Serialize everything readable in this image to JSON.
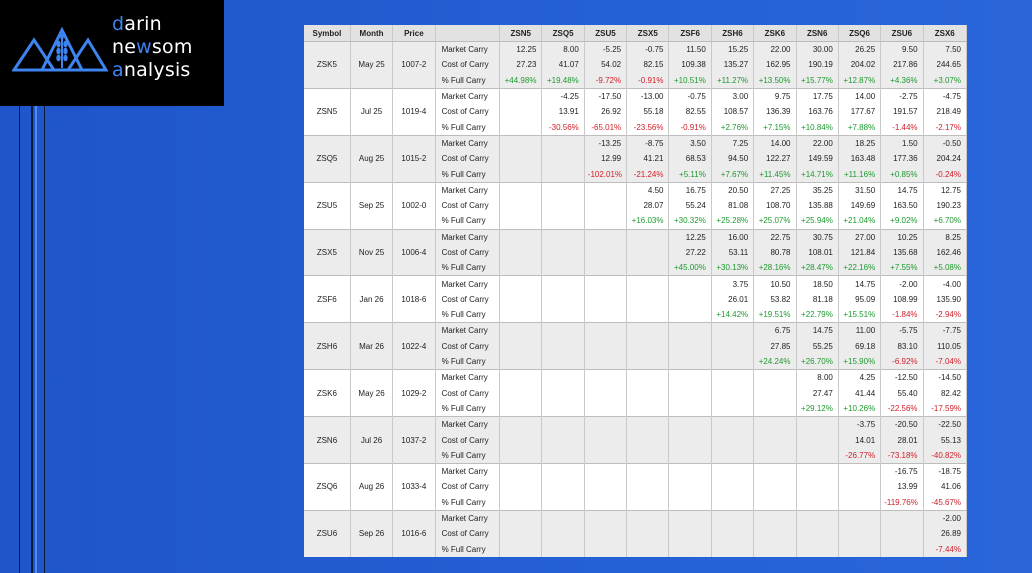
{
  "brand": {
    "line1_hl": "d",
    "line1": "arin",
    "line2_a": "ne",
    "line2_hl": "w",
    "line2_b": "som",
    "line3_hl": "a",
    "line3": "nalysis"
  },
  "colors": {
    "positive": "#1e9a2e",
    "negative": "#d0202a",
    "accent": "#3d84f0"
  },
  "chart_data": {
    "type": "table",
    "headers": [
      "Symbol",
      "Month",
      "Price",
      "",
      "ZSN5",
      "ZSQ5",
      "ZSU5",
      "ZSX5",
      "ZSF6",
      "ZSH6",
      "ZSK6",
      "ZSN6",
      "ZSQ6",
      "ZSU6",
      "ZSX6"
    ],
    "rows": [
      [
        "",
        "",
        "",
        "Market Carry",
        "12.25",
        "8.00",
        "-5.25",
        "-0.75",
        "11.50",
        "15.25",
        "22.00",
        "30.00",
        "26.25",
        "9.50",
        "7.50"
      ],
      [
        "ZSK5",
        "May 25",
        "1007-2",
        "Cost of Carry",
        "27.23",
        "41.07",
        "54.02",
        "82.15",
        "109.38",
        "135.27",
        "162.95",
        "190.19",
        "204.02",
        "217.86",
        "244.65"
      ],
      [
        "",
        "",
        "",
        "% Full Carry",
        "+44.98%",
        "+19.48%",
        "-9.72%",
        "-0.91%",
        "+10.51%",
        "+11.27%",
        "+13.50%",
        "+15.77%",
        "+12.87%",
        "+4.36%",
        "+3.07%"
      ],
      [
        "",
        "",
        "",
        "Market Carry",
        "",
        "-4.25",
        "-17.50",
        "-13.00",
        "-0.75",
        "3.00",
        "9.75",
        "17.75",
        "14.00",
        "-2.75",
        "-4.75"
      ],
      [
        "ZSN5",
        "Jul 25",
        "1019-4",
        "Cost of Carry",
        "",
        "13.91",
        "26.92",
        "55.18",
        "82.55",
        "108.57",
        "136.39",
        "163.76",
        "177.67",
        "191.57",
        "218.49"
      ],
      [
        "",
        "",
        "",
        "% Full Carry",
        "",
        "-30.56%",
        "-65.01%",
        "-23.56%",
        "-0.91%",
        "+2.76%",
        "+7.15%",
        "+10.84%",
        "+7.88%",
        "-1.44%",
        "-2.17%"
      ],
      [
        "",
        "",
        "",
        "Market Carry",
        "",
        "",
        "-13.25",
        "-8.75",
        "3.50",
        "7.25",
        "14.00",
        "22.00",
        "18.25",
        "1.50",
        "-0.50"
      ],
      [
        "ZSQ5",
        "Aug 25",
        "1015-2",
        "Cost of Carry",
        "",
        "",
        "12.99",
        "41.21",
        "68.53",
        "94.50",
        "122.27",
        "149.59",
        "163.48",
        "177.36",
        "204.24"
      ],
      [
        "",
        "",
        "",
        "% Full Carry",
        "",
        "",
        "-102.01%",
        "-21.24%",
        "+5.11%",
        "+7.67%",
        "+11.45%",
        "+14.71%",
        "+11.16%",
        "+0.85%",
        "-0.24%"
      ],
      [
        "",
        "",
        "",
        "Market Carry",
        "",
        "",
        "",
        "4.50",
        "16.75",
        "20.50",
        "27.25",
        "35.25",
        "31.50",
        "14.75",
        "12.75"
      ],
      [
        "ZSU5",
        "Sep 25",
        "1002-0",
        "Cost of Carry",
        "",
        "",
        "",
        "28.07",
        "55.24",
        "81.08",
        "108.70",
        "135.88",
        "149.69",
        "163.50",
        "190.23"
      ],
      [
        "",
        "",
        "",
        "% Full Carry",
        "",
        "",
        "",
        "+16.03%",
        "+30.32%",
        "+25.28%",
        "+25.07%",
        "+25.94%",
        "+21.04%",
        "+9.02%",
        "+6.70%"
      ],
      [
        "",
        "",
        "",
        "Market Carry",
        "",
        "",
        "",
        "",
        "12.25",
        "16.00",
        "22.75",
        "30.75",
        "27.00",
        "10.25",
        "8.25"
      ],
      [
        "ZSX5",
        "Nov 25",
        "1006-4",
        "Cost of Carry",
        "",
        "",
        "",
        "",
        "27.22",
        "53.11",
        "80.78",
        "108.01",
        "121.84",
        "135.68",
        "162.46"
      ],
      [
        "",
        "",
        "",
        "% Full Carry",
        "",
        "",
        "",
        "",
        "+45.00%",
        "+30.13%",
        "+28.16%",
        "+28.47%",
        "+22.16%",
        "+7.55%",
        "+5.08%"
      ],
      [
        "",
        "",
        "",
        "Market Carry",
        "",
        "",
        "",
        "",
        "",
        "3.75",
        "10.50",
        "18.50",
        "14.75",
        "-2.00",
        "-4.00"
      ],
      [
        "ZSF6",
        "Jan 26",
        "1018-6",
        "Cost of Carry",
        "",
        "",
        "",
        "",
        "",
        "26.01",
        "53.82",
        "81.18",
        "95.09",
        "108.99",
        "135.90"
      ],
      [
        "",
        "",
        "",
        "% Full Carry",
        "",
        "",
        "",
        "",
        "",
        "+14.42%",
        "+19.51%",
        "+22.79%",
        "+15.51%",
        "-1.84%",
        "-2.94%"
      ],
      [
        "",
        "",
        "",
        "Market Carry",
        "",
        "",
        "",
        "",
        "",
        "",
        "6.75",
        "14.75",
        "11.00",
        "-5.75",
        "-7.75"
      ],
      [
        "ZSH6",
        "Mar 26",
        "1022-4",
        "Cost of Carry",
        "",
        "",
        "",
        "",
        "",
        "",
        "27.85",
        "55.25",
        "69.18",
        "83.10",
        "110.05"
      ],
      [
        "",
        "",
        "",
        "% Full Carry",
        "",
        "",
        "",
        "",
        "",
        "",
        "+24.24%",
        "+26.70%",
        "+15.90%",
        "-6.92%",
        "-7.04%"
      ],
      [
        "",
        "",
        "",
        "Market Carry",
        "",
        "",
        "",
        "",
        "",
        "",
        "",
        "8.00",
        "4.25",
        "-12.50",
        "-14.50"
      ],
      [
        "ZSK6",
        "May 26",
        "1029-2",
        "Cost of Carry",
        "",
        "",
        "",
        "",
        "",
        "",
        "",
        "27.47",
        "41.44",
        "55.40",
        "82.42"
      ],
      [
        "",
        "",
        "",
        "% Full Carry",
        "",
        "",
        "",
        "",
        "",
        "",
        "",
        "+29.12%",
        "+10.26%",
        "-22.56%",
        "-17.59%"
      ],
      [
        "",
        "",
        "",
        "Market Carry",
        "",
        "",
        "",
        "",
        "",
        "",
        "",
        "",
        "-3.75",
        "-20.50",
        "-22.50"
      ],
      [
        "ZSN6",
        "Jul 26",
        "1037-2",
        "Cost of Carry",
        "",
        "",
        "",
        "",
        "",
        "",
        "",
        "",
        "14.01",
        "28.01",
        "55.13"
      ],
      [
        "",
        "",
        "",
        "% Full Carry",
        "",
        "",
        "",
        "",
        "",
        "",
        "",
        "",
        "-26.77%",
        "-73.18%",
        "-40.82%"
      ],
      [
        "",
        "",
        "",
        "Market Carry",
        "",
        "",
        "",
        "",
        "",
        "",
        "",
        "",
        "",
        "-16.75",
        "-18.75"
      ],
      [
        "ZSQ6",
        "Aug 26",
        "1033-4",
        "Cost of Carry",
        "",
        "",
        "",
        "",
        "",
        "",
        "",
        "",
        "",
        "13.99",
        "41.06"
      ],
      [
        "",
        "",
        "",
        "% Full Carry",
        "",
        "",
        "",
        "",
        "",
        "",
        "",
        "",
        "",
        "-119.76%",
        "-45.67%"
      ],
      [
        "",
        "",
        "",
        "Market Carry",
        "",
        "",
        "",
        "",
        "",
        "",
        "",
        "",
        "",
        "",
        "-2.00"
      ],
      [
        "ZSU6",
        "Sep 26",
        "1016-6",
        "Cost of Carry",
        "",
        "",
        "",
        "",
        "",
        "",
        "",
        "",
        "",
        "",
        "26.89"
      ],
      [
        "",
        "",
        "",
        "% Full Carry",
        "",
        "",
        "",
        "",
        "",
        "",
        "",
        "",
        "",
        "",
        "-7.44%"
      ]
    ]
  }
}
